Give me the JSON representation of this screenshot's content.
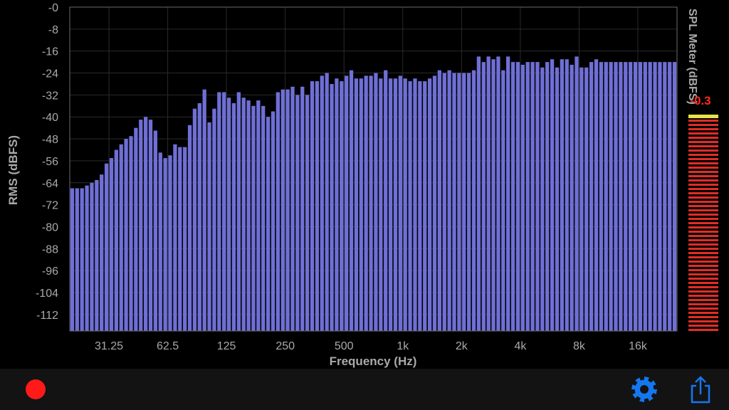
{
  "chart_data": {
    "type": "bar",
    "ylabel": "RMS (dBFS)",
    "xlabel": "Frequency (Hz)",
    "ylim": [
      -118,
      0
    ],
    "y_ticks": [
      "-0",
      "-8",
      "-16",
      "-24",
      "-32",
      "-40",
      "-48",
      "-56",
      "-64",
      "-72",
      "-80",
      "-88",
      "-96",
      "-104",
      "-112"
    ],
    "x_ticks": [
      "31.25",
      "62.5",
      "125",
      "250",
      "500",
      "1k",
      "2k",
      "4k",
      "8k",
      "16k"
    ],
    "x_tick_bin_positions": [
      8,
      20,
      32,
      44,
      56,
      68,
      80,
      92,
      104,
      116
    ],
    "bar_color": "#6f6fd6",
    "values": [
      -66,
      -66,
      -66,
      -65,
      -64,
      -63,
      -61,
      -57,
      -55,
      -52,
      -50,
      -48,
      -47,
      -44,
      -41,
      -40,
      -41,
      -45,
      -53,
      -55,
      -54,
      -50,
      -51,
      -51,
      -43,
      -37,
      -35,
      -30,
      -42,
      -37,
      -31,
      -31,
      -33,
      -35,
      -31,
      -33,
      -34,
      -36,
      -34,
      -36,
      -40,
      -38,
      -31,
      -30,
      -30,
      -29,
      -32,
      -29,
      -32,
      -27,
      -27,
      -25,
      -24,
      -28,
      -26,
      -27,
      -25,
      -23,
      -26,
      -26,
      -25,
      -25,
      -24,
      -26,
      -23,
      -26,
      -26,
      -25,
      -26,
      -27,
      -26,
      -27,
      -27,
      -26,
      -25,
      -23,
      -24,
      -23,
      -24,
      -24,
      -24,
      -24,
      -23,
      -18,
      -20,
      -18,
      -19,
      -18,
      -23,
      -18,
      -20,
      -20,
      -21,
      -20,
      -20,
      -20,
      -22,
      -20,
      -19,
      -22,
      -19,
      -19,
      -21,
      -18,
      -22,
      -22,
      -20,
      -19,
      -20,
      -20,
      -20,
      -20,
      -20,
      -20,
      -20,
      -20,
      -20,
      -20,
      -20,
      -20,
      -20,
      -20,
      -20,
      -20
    ],
    "spl_meter": {
      "label": "SPL Meter (dBFS)",
      "value_text": "-0.3",
      "value": -0.3,
      "segment_color": "#e22d26",
      "peak_color": "#e5e34a"
    }
  },
  "controls": {
    "record_color": "#ff1a1a",
    "accent_color": "#1477f0",
    "settings_icon": "gear-icon",
    "share_icon": "share-icon"
  }
}
